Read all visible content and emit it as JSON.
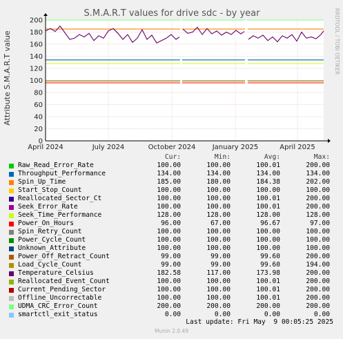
{
  "chart_data": {
    "type": "line",
    "title": "S.M.A.R.T values for drive sdc - by year",
    "ylabel": "Attribute S.M.A.R.T value",
    "side_label": "RRDTOOL / TOBI OETIKER",
    "ylim": [
      0,
      200
    ],
    "y_ticks": [
      0,
      20,
      40,
      60,
      80,
      100,
      120,
      140,
      160,
      180,
      200
    ],
    "x_ticks": [
      "April 2024",
      "July 2024",
      "October 2024",
      "January 2025",
      "April 2025"
    ],
    "grid": true,
    "x_start": "2024-04-01",
    "x_end": "2025-05-09",
    "x_tick_dates": [
      "2024-04-01",
      "2024-07-01",
      "2024-10-01",
      "2025-01-01",
      "2025-04-01"
    ],
    "gaps": [
      [
        "2024-10-13",
        "2024-10-16"
      ],
      [
        "2025-01-15",
        "2025-01-19"
      ]
    ],
    "temperature": {
      "name": "Temperature_Celsius",
      "dates": [
        "2024-04-01",
        "2024-04-08",
        "2024-04-15",
        "2024-04-22",
        "2024-05-06",
        "2024-05-13",
        "2024-05-20",
        "2024-05-27",
        "2024-06-03",
        "2024-06-10",
        "2024-06-17",
        "2024-06-24",
        "2024-07-01",
        "2024-07-08",
        "2024-07-15",
        "2024-07-22",
        "2024-07-29",
        "2024-08-05",
        "2024-08-12",
        "2024-08-19",
        "2024-08-26",
        "2024-09-02",
        "2024-09-09",
        "2024-09-16",
        "2024-09-23",
        "2024-09-30",
        "2024-10-07",
        "2024-10-12",
        "2024-10-17",
        "2024-10-24",
        "2024-10-31",
        "2024-11-07",
        "2024-11-14",
        "2024-11-21",
        "2024-11-28",
        "2024-12-05",
        "2024-12-12",
        "2024-12-19",
        "2024-12-26",
        "2025-01-02",
        "2025-01-09",
        "2025-01-14",
        "2025-01-20",
        "2025-01-27",
        "2025-02-03",
        "2025-02-10",
        "2025-02-17",
        "2025-02-24",
        "2025-03-03",
        "2025-03-10",
        "2025-03-17",
        "2025-03-24",
        "2025-03-31",
        "2025-04-07",
        "2025-04-14",
        "2025-04-21",
        "2025-04-28",
        "2025-05-05",
        "2025-05-09"
      ],
      "values": [
        182,
        186,
        181,
        190,
        168,
        170,
        176,
        172,
        178,
        166,
        174,
        170,
        182,
        186,
        178,
        168,
        176,
        163,
        170,
        184,
        168,
        175,
        162,
        166,
        170,
        176,
        168,
        172,
        185,
        178,
        180,
        188,
        176,
        186,
        177,
        182,
        175,
        180,
        176,
        183,
        177,
        181,
        168,
        174,
        170,
        175,
        166,
        172,
        164,
        174,
        170,
        176,
        165,
        180,
        170,
        172,
        169,
        176,
        182
      ]
    },
    "flat_series": [
      {
        "name": "Raw_Read_Error_Rate",
        "value": 100,
        "color": "#00cc00"
      },
      {
        "name": "Throughput_Performance",
        "value": 134,
        "color": "#0066b3"
      },
      {
        "name": "Spin_Up_Time",
        "value": 185,
        "color": "#ff8000"
      },
      {
        "name": "Start_Stop_Count",
        "value": 100,
        "color": "#ffcc00"
      },
      {
        "name": "Reallocated_Sector_Ct",
        "value": 100,
        "color": "#330099"
      },
      {
        "name": "Seek_Error_Rate",
        "value": 100,
        "color": "#990099"
      },
      {
        "name": "Seek_Time_Performance",
        "value": 128,
        "color": "#ccff00"
      },
      {
        "name": "Power_On_Hours",
        "value": 96,
        "color": "#ff0000"
      },
      {
        "name": "Spin_Retry_Count",
        "value": 100,
        "color": "#808080"
      },
      {
        "name": "Power_Cycle_Count",
        "value": 100,
        "color": "#008f00"
      },
      {
        "name": "Unknown_Attribute",
        "value": 100,
        "color": "#00487d"
      },
      {
        "name": "Power_Off_Retract_Count",
        "value": 99,
        "color": "#b35a00"
      },
      {
        "name": "Load_Cycle_Count",
        "value": 99,
        "color": "#b38f00"
      },
      {
        "name": "Reallocated_Event_Count",
        "value": 100,
        "color": "#8fb300"
      },
      {
        "name": "Current_Pending_Sector",
        "value": 100,
        "color": "#b30000"
      },
      {
        "name": "Offline_Uncorrectable",
        "value": 100,
        "color": "#bebebe"
      },
      {
        "name": "UDMA_CRC_Error_Count",
        "value": 200,
        "color": "#80ff80"
      },
      {
        "name": "smartctl_exit_status",
        "value": 0,
        "color": "#80c9ff"
      }
    ]
  },
  "legend": {
    "headers": {
      "cur": "Cur:",
      "min": "Min:",
      "avg": "Avg:",
      "max": "Max:"
    },
    "rows": [
      {
        "name": "Raw_Read_Error_Rate",
        "color": "#00cc00",
        "cur": "100.00",
        "min": "100.00",
        "avg": "100.01",
        "max": "200.00"
      },
      {
        "name": "Throughput_Performance",
        "color": "#0066b3",
        "cur": "134.00",
        "min": "134.00",
        "avg": "134.00",
        "max": "134.00"
      },
      {
        "name": "Spin_Up_Time",
        "color": "#ff8000",
        "cur": "185.00",
        "min": "180.00",
        "avg": "184.38",
        "max": "202.00"
      },
      {
        "name": "Start_Stop_Count",
        "color": "#ffcc00",
        "cur": "100.00",
        "min": "100.00",
        "avg": "100.00",
        "max": "100.00"
      },
      {
        "name": "Reallocated_Sector_Ct",
        "color": "#330099",
        "cur": "100.00",
        "min": "100.00",
        "avg": "100.01",
        "max": "200.00"
      },
      {
        "name": "Seek_Error_Rate",
        "color": "#990099",
        "cur": "100.00",
        "min": "100.00",
        "avg": "100.01",
        "max": "200.00"
      },
      {
        "name": "Seek_Time_Performance",
        "color": "#ccff00",
        "cur": "128.00",
        "min": "128.00",
        "avg": "128.00",
        "max": "128.00"
      },
      {
        "name": "Power_On_Hours",
        "color": "#ff0000",
        "cur": "96.00",
        "min": "67.00",
        "avg": "96.67",
        "max": "97.00"
      },
      {
        "name": "Spin_Retry_Count",
        "color": "#808080",
        "cur": "100.00",
        "min": "100.00",
        "avg": "100.00",
        "max": "100.00"
      },
      {
        "name": "Power_Cycle_Count",
        "color": "#008f00",
        "cur": "100.00",
        "min": "100.00",
        "avg": "100.00",
        "max": "100.00"
      },
      {
        "name": "Unknown_Attribute",
        "color": "#00487d",
        "cur": "100.00",
        "min": "100.00",
        "avg": "100.00",
        "max": "100.00"
      },
      {
        "name": "Power_Off_Retract_Count",
        "color": "#b35a00",
        "cur": "99.00",
        "min": "99.00",
        "avg": "99.60",
        "max": "200.00"
      },
      {
        "name": "Load_Cycle_Count",
        "color": "#b38f00",
        "cur": "99.00",
        "min": "99.00",
        "avg": "99.60",
        "max": "194.00"
      },
      {
        "name": "Temperature_Celsius",
        "color": "#660066",
        "cur": "182.58",
        "min": "117.00",
        "avg": "173.98",
        "max": "200.00"
      },
      {
        "name": "Reallocated_Event_Count",
        "color": "#8fb300",
        "cur": "100.00",
        "min": "100.00",
        "avg": "100.01",
        "max": "200.00"
      },
      {
        "name": "Current_Pending_Sector",
        "color": "#b30000",
        "cur": "100.00",
        "min": "100.00",
        "avg": "100.01",
        "max": "200.00"
      },
      {
        "name": "Offline_Uncorrectable",
        "color": "#bebebe",
        "cur": "100.00",
        "min": "100.00",
        "avg": "100.01",
        "max": "200.00"
      },
      {
        "name": "UDMA_CRC_Error_Count",
        "color": "#80ff80",
        "cur": "200.00",
        "min": "200.00",
        "avg": "200.00",
        "max": "200.00"
      },
      {
        "name": "smartctl_exit_status",
        "color": "#80c9ff",
        "cur": "0.00",
        "min": "0.00",
        "avg": "0.00",
        "max": "0.00"
      }
    ]
  },
  "footer": {
    "last_update": "Last update: Fri May  9 00:05:25 2025",
    "munin": "Munin 2.0.49"
  }
}
